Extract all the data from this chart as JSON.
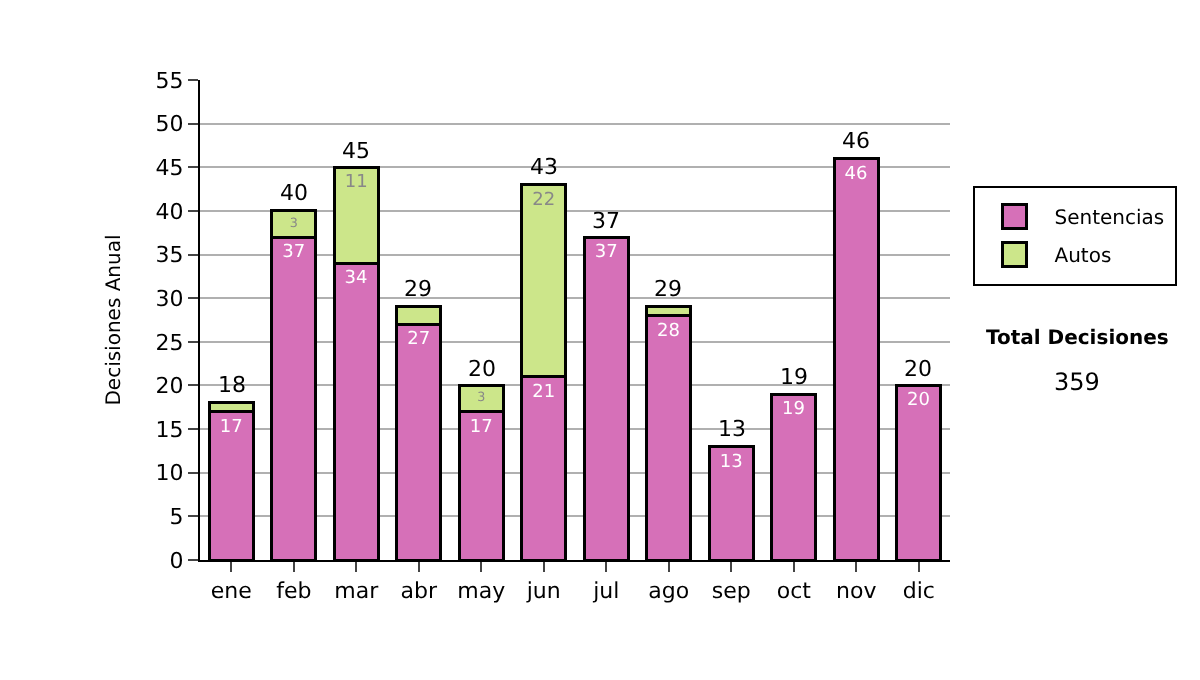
{
  "chart_data": {
    "type": "bar",
    "stacked": true,
    "ylabel": "Decisiones Anual",
    "categories": [
      "ene",
      "feb",
      "mar",
      "abr",
      "may",
      "jun",
      "jul",
      "ago",
      "sep",
      "oct",
      "nov",
      "dic"
    ],
    "series": [
      {
        "name": "Sentencias",
        "color": "#d670b8",
        "values": [
          17,
          37,
          34,
          27,
          17,
          21,
          37,
          28,
          13,
          19,
          46,
          20
        ],
        "value_labels": [
          "17",
          "37",
          "34",
          "27",
          "17",
          "21",
          "37",
          "28",
          "13",
          "19",
          "46",
          "20"
        ]
      },
      {
        "name": "Autos",
        "color": "#cce68a",
        "values": [
          1,
          3,
          11,
          2,
          3,
          22,
          null,
          1,
          null,
          null,
          null,
          null
        ],
        "value_labels": [
          null,
          "3",
          "11",
          null,
          "3",
          "22",
          null,
          null,
          null,
          null,
          null,
          null
        ]
      }
    ],
    "totals": [
      "18",
      "40",
      "45",
      "29",
      "20",
      "43",
      "37",
      "29",
      "13",
      "19",
      "46",
      "20"
    ],
    "ylim": [
      0,
      55
    ],
    "yticks": [
      0,
      5,
      10,
      15,
      20,
      25,
      30,
      35,
      40,
      45,
      50,
      55
    ],
    "grid": "y",
    "legend": "right",
    "annotations": [
      "Total Decisiones",
      "359"
    ]
  }
}
